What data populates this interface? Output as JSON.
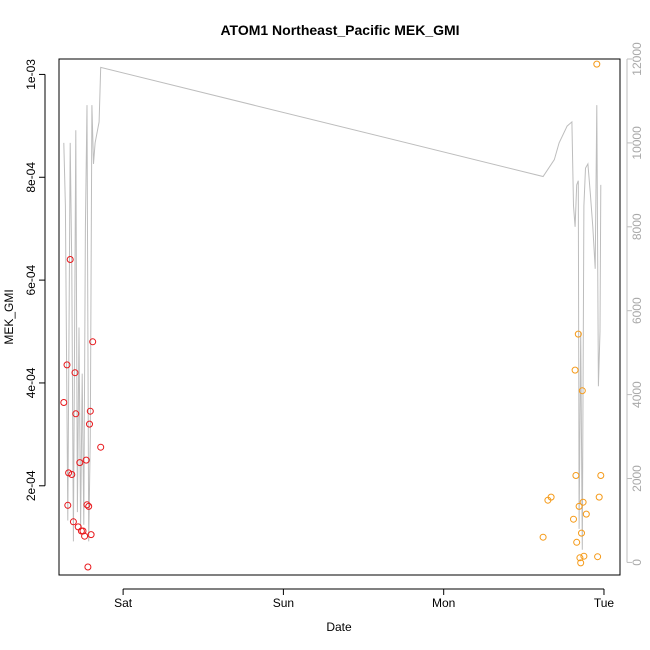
{
  "chart_data": {
    "type": "scatter",
    "title": "ATOM1 Northeast_Pacific MEK_GMI",
    "xlabel": "Date",
    "ylabel": "MEK_GMI",
    "x_unit": "day",
    "xlim": [
      -0.4,
      3.1
    ],
    "x_ticks": [
      {
        "value": 0,
        "label": "Sat"
      },
      {
        "value": 1,
        "label": "Sun"
      },
      {
        "value": 2,
        "label": "Mon"
      },
      {
        "value": 3,
        "label": "Tue"
      }
    ],
    "ylim": [
      2.65e-05,
      0.00103
    ],
    "y_ticks": [
      {
        "value": 0.0002,
        "label": "2e-04"
      },
      {
        "value": 0.0004,
        "label": "4e-04"
      },
      {
        "value": 0.0006,
        "label": "6e-04"
      },
      {
        "value": 0.0008,
        "label": "8e-04"
      },
      {
        "value": 0.001,
        "label": "1e-03"
      }
    ],
    "y2lim": [
      -300,
      12000
    ],
    "y2_ticks": [
      {
        "value": 0,
        "label": "0"
      },
      {
        "value": 2000,
        "label": "2000"
      },
      {
        "value": 4000,
        "label": "4000"
      },
      {
        "value": 6000,
        "label": "6000"
      },
      {
        "value": 8000,
        "label": "8000"
      },
      {
        "value": 10000,
        "label": "10000"
      },
      {
        "value": 12000,
        "label": "12000"
      }
    ],
    "colors": {
      "series1": "#e8171b",
      "series2": "#f59a18",
      "altitude": "#bdbdbd"
    },
    "series": [
      {
        "kind": "points",
        "color_key": "series1",
        "points": [
          [
            -0.37,
            0.000362
          ],
          [
            -0.35,
            0.000435
          ],
          [
            -0.345,
            0.000162
          ],
          [
            -0.34,
            0.000225
          ],
          [
            -0.33,
            0.00064
          ],
          [
            -0.32,
            0.000222
          ],
          [
            -0.31,
            0.00013
          ],
          [
            -0.3,
            0.00042
          ],
          [
            -0.295,
            0.00034
          ],
          [
            -0.28,
            0.00012
          ],
          [
            -0.27,
            0.000245
          ],
          [
            -0.26,
            0.000112
          ],
          [
            -0.25,
            0.000112
          ],
          [
            -0.24,
            0.000102
          ],
          [
            -0.23,
            0.00025
          ],
          [
            -0.225,
            0.000163
          ],
          [
            -0.22,
            4.2e-05
          ],
          [
            -0.215,
            0.00016
          ],
          [
            -0.21,
            0.00032
          ],
          [
            -0.205,
            0.000345
          ],
          [
            -0.2,
            0.000105
          ],
          [
            -0.19,
            0.00048
          ],
          [
            -0.14,
            0.000275
          ]
        ]
      },
      {
        "kind": "points",
        "color_key": "series2",
        "points": [
          [
            2.62,
            0.0001
          ],
          [
            2.65,
            0.000172
          ],
          [
            2.67,
            0.000178
          ],
          [
            2.81,
            0.000135
          ],
          [
            2.82,
            0.000425
          ],
          [
            2.825,
            0.00022
          ],
          [
            2.83,
            9e-05
          ],
          [
            2.84,
            0.000495
          ],
          [
            2.845,
            0.00016
          ],
          [
            2.85,
            6e-05
          ],
          [
            2.855,
            5e-05
          ],
          [
            2.86,
            0.000108
          ],
          [
            2.865,
            0.000385
          ],
          [
            2.87,
            0.000168
          ],
          [
            2.875,
            6.3e-05
          ],
          [
            2.89,
            0.000145
          ],
          [
            2.955,
            0.00102
          ],
          [
            2.96,
            6.2e-05
          ],
          [
            2.97,
            0.000178
          ],
          [
            2.98,
            0.00022
          ]
        ]
      },
      {
        "kind": "line",
        "axis": "right",
        "color_key": "altitude",
        "points": [
          [
            -0.37,
            10000
          ],
          [
            -0.36,
            8500
          ],
          [
            -0.345,
            1000
          ],
          [
            -0.33,
            10000
          ],
          [
            -0.32,
            7000
          ],
          [
            -0.31,
            500
          ],
          [
            -0.295,
            10300
          ],
          [
            -0.285,
            1200
          ],
          [
            -0.275,
            5600
          ],
          [
            -0.265,
            800
          ],
          [
            -0.255,
            4500
          ],
          [
            -0.245,
            900
          ],
          [
            -0.235,
            8000
          ],
          [
            -0.225,
            10900
          ],
          [
            -0.215,
            500
          ],
          [
            -0.205,
            3000
          ],
          [
            -0.195,
            10900
          ],
          [
            -0.185,
            9500
          ],
          [
            -0.175,
            10000
          ],
          [
            -0.15,
            10500
          ],
          [
            -0.14,
            11800
          ],
          [
            2.62,
            9200
          ],
          [
            2.69,
            9600
          ],
          [
            2.72,
            10000
          ],
          [
            2.77,
            10400
          ],
          [
            2.8,
            10500
          ],
          [
            2.81,
            8500
          ],
          [
            2.82,
            8000
          ],
          [
            2.83,
            9000
          ],
          [
            2.84,
            9100
          ],
          [
            2.845,
            800
          ],
          [
            2.855,
            5500
          ],
          [
            2.865,
            300
          ],
          [
            2.875,
            8500
          ],
          [
            2.885,
            9400
          ],
          [
            2.9,
            9500
          ],
          [
            2.915,
            8800
          ],
          [
            2.93,
            8000
          ],
          [
            2.945,
            7000
          ],
          [
            2.955,
            10900
          ],
          [
            2.965,
            4200
          ],
          [
            2.975,
            5500
          ],
          [
            2.98,
            9000
          ]
        ]
      }
    ]
  }
}
